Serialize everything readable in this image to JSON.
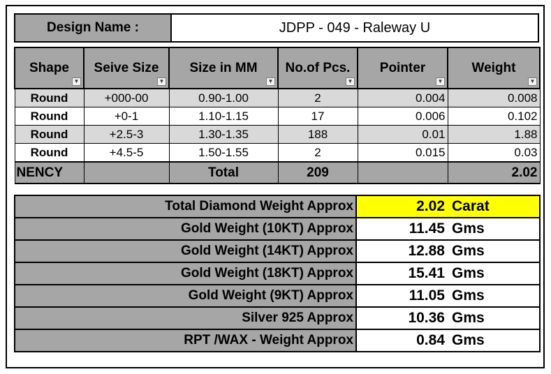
{
  "design": {
    "label": "Design Name :",
    "value": "JDPP - 049 - Raleway U"
  },
  "table": {
    "columns": [
      "Shape",
      "Seive Size",
      "Size in MM",
      "No.of Pcs.",
      "Pointer",
      "Weight"
    ],
    "rows": [
      {
        "shape": "Round",
        "seive": "+000-00",
        "size": "0.90-1.00",
        "pcs": "2",
        "pointer": "0.004",
        "weight": "0.008"
      },
      {
        "shape": "Round",
        "seive": "+0-1",
        "size": "1.10-1.15",
        "pcs": "17",
        "pointer": "0.006",
        "weight": "0.102"
      },
      {
        "shape": "Round",
        "seive": "+2.5-3",
        "size": "1.30-1.35",
        "pcs": "188",
        "pointer": "0.01",
        "weight": "1.88"
      },
      {
        "shape": "Round",
        "seive": "+4.5-5",
        "size": "1.50-1.55",
        "pcs": "2",
        "pointer": "0.015",
        "weight": "0.03"
      }
    ],
    "total": {
      "name": "NENCY",
      "label": "Total",
      "pcs": "209",
      "weight": "2.02"
    }
  },
  "summary": [
    {
      "label": "Total Diamond Weight Approx",
      "value": "2.02",
      "unit": "Carat",
      "highlight_color": "#ffff00"
    },
    {
      "label": "Gold Weight (10KT) Approx",
      "value": "11.45",
      "unit": "Gms"
    },
    {
      "label": "Gold Weight (14KT) Approx",
      "value": "12.88",
      "unit": "Gms"
    },
    {
      "label": "Gold Weight (18KT) Approx",
      "value": "15.41",
      "unit": "Gms"
    },
    {
      "label": "Gold Weight (9KT) Approx",
      "value": "11.05",
      "unit": "Gms"
    },
    {
      "label": "Silver 925 Approx",
      "value": "10.36",
      "unit": "Gms"
    },
    {
      "label": "RPT /WAX - Weight Approx",
      "value": "0.84",
      "unit": "Gms"
    }
  ],
  "colors": {
    "header_gray": "#a6a6a6",
    "row_alt_gray": "#d9d9d9",
    "highlight": "#ffff00"
  },
  "icons": {
    "filter": "dropdown-arrow-icon",
    "active_filter": "filter-applied-icon"
  }
}
